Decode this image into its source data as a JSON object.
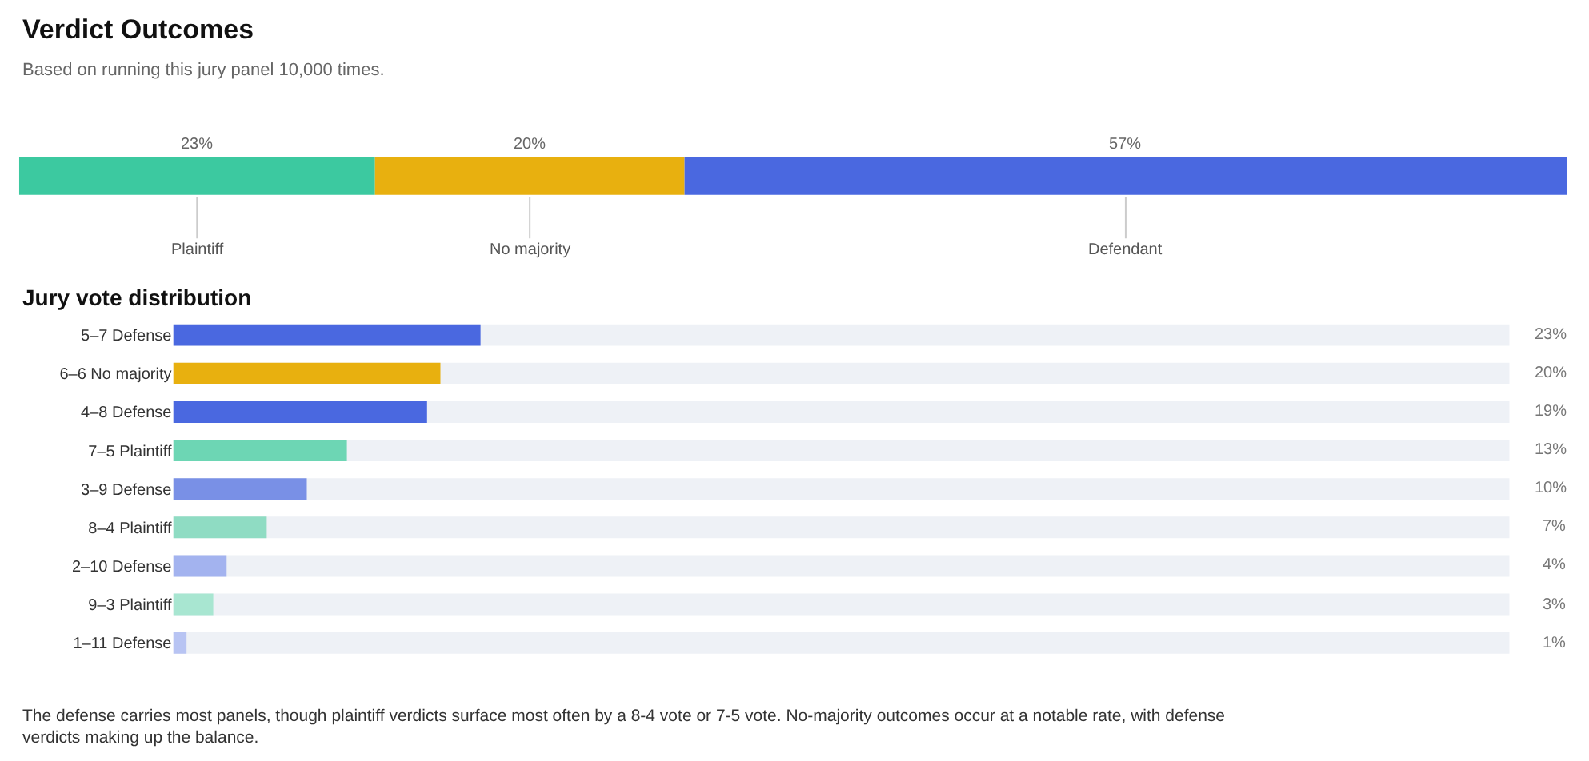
{
  "chart_data": [
    {
      "type": "bar",
      "title": "Verdict Outcomes",
      "subtitle": "Based on running this jury panel 10,000 times.",
      "orientation": "horizontal",
      "stacked": true,
      "categories": [
        null
      ],
      "xlim": [
        0,
        100
      ],
      "tick_labels": false,
      "grid": false,
      "series": [
        {
          "name": "Plaintiff",
          "color": "#3cc9a0",
          "values": [
            23
          ],
          "value_labels": [
            "23%"
          ]
        },
        {
          "name": "No majority",
          "color": "#e8b00f",
          "values": [
            20
          ],
          "value_labels": [
            "20%"
          ]
        },
        {
          "name": "Defendant",
          "color": "#4a68e0",
          "values": [
            57
          ],
          "value_labels": [
            "57%"
          ]
        }
      ]
    },
    {
      "type": "bar",
      "title": "Jury vote distribution",
      "orientation": "horizontal",
      "categories": [
        "5–7 Defense",
        "6–6 No majority",
        "4–8 Defense",
        "7–5 Plaintiff",
        "3–9 Defense",
        "8–4 Plaintiff",
        "2–10 Defense",
        "9–3 Plaintiff",
        "1–11 Defense"
      ],
      "xlim": [
        0,
        100
      ],
      "tick_labels": "y",
      "grid": false,
      "values": [
        23,
        20,
        19,
        13,
        10,
        7,
        4,
        3,
        1
      ],
      "colors": [
        "#4a68e0",
        "#e8b00f",
        "#4a68e0",
        "#6dd6b4",
        "#7990e6",
        "#8fdcc3",
        "#a3b3ef",
        "#a8e6d1",
        "#b8c4f3"
      ],
      "value_labels": [
        "23%",
        "20%",
        "19%",
        "13%",
        "10%",
        "7%",
        "4%",
        "3%",
        "1%"
      ],
      "annotations": [
        "The defense carries most panels, though plaintiff verdicts surface most often by a 8-4 vote or 7-5 vote. No-majority outcomes occur at a notable rate, with defense verdicts making up the balance."
      ]
    }
  ]
}
